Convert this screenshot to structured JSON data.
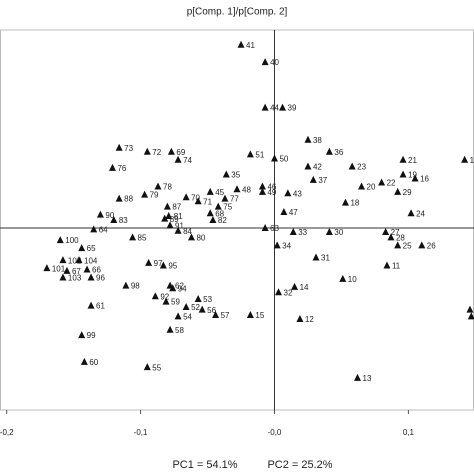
{
  "chart_data": {
    "type": "scatter",
    "title": "p[Comp. 1]/p[Comp. 2]",
    "x": [
      -0.025,
      -0.007,
      -0.007,
      0.006,
      0.025,
      -0.116,
      -0.095,
      -0.077,
      -0.072,
      -0.018,
      0.0,
      0.041,
      -0.121,
      0.025,
      0.058,
      0.096,
      0.142,
      -0.036,
      0.029,
      0.096,
      0.105,
      -0.009,
      -0.087,
      0.065,
      0.08,
      -0.048,
      -0.009,
      -0.028,
      0.01,
      0.092,
      -0.066,
      -0.037,
      -0.116,
      -0.097,
      -0.042,
      0.053,
      -0.08,
      -0.13,
      -0.12,
      -0.079,
      -0.048,
      0.007,
      0.102,
      -0.082,
      -0.046,
      -0.057,
      -0.078,
      -0.007,
      -0.135,
      -0.072,
      0.014,
      0.041,
      0.083,
      -0.106,
      -0.062,
      -0.16,
      0.087,
      0.002,
      0.092,
      0.11,
      -0.144,
      0.031,
      -0.158,
      -0.146,
      -0.094,
      -0.083,
      0.084,
      -0.17,
      -0.155,
      -0.14,
      -0.137,
      -0.158,
      0.051,
      -0.111,
      -0.078,
      -0.076,
      0.015,
      0.003,
      -0.137,
      -0.089,
      -0.081,
      -0.057,
      -0.066,
      -0.054,
      -0.044,
      -0.072,
      -0.018,
      0.019,
      0.146,
      0.147,
      -0.078,
      -0.144,
      -0.142,
      -0.095,
      0.062
    ],
    "y": [
      0.137,
      0.124,
      0.09,
      0.09,
      0.066,
      0.06,
      0.057,
      0.057,
      0.051,
      0.055,
      0.052,
      0.057,
      0.045,
      0.046,
      0.046,
      0.051,
      0.051,
      0.04,
      0.036,
      0.04,
      0.037,
      0.031,
      0.031,
      0.031,
      0.034,
      0.027,
      0.027,
      0.029,
      0.026,
      0.027,
      0.023,
      0.022,
      0.022,
      0.025,
      0.016,
      0.019,
      0.016,
      0.01,
      0.006,
      0.009,
      0.011,
      0.012,
      0.011,
      0.007,
      0.006,
      0.02,
      0.002,
      0.0,
      -0.001,
      -0.002,
      -0.003,
      -0.003,
      -0.003,
      -0.007,
      -0.007,
      -0.009,
      -0.007,
      -0.013,
      -0.013,
      -0.013,
      -0.015,
      -0.022,
      -0.024,
      -0.024,
      -0.026,
      -0.028,
      -0.028,
      -0.03,
      -0.032,
      -0.031,
      -0.037,
      -0.037,
      -0.038,
      -0.043,
      -0.043,
      -0.045,
      -0.044,
      -0.048,
      -0.058,
      -0.051,
      -0.055,
      -0.053,
      -0.059,
      -0.061,
      -0.065,
      -0.066,
      -0.065,
      -0.068,
      -0.061,
      -0.066,
      -0.076,
      -0.08,
      -0.1,
      -0.104,
      -0.112
    ],
    "labels": [
      "41",
      "40",
      "44",
      "39",
      "38",
      "73",
      "72",
      "69",
      "74",
      "51",
      "50",
      "36",
      "76",
      "42",
      "23",
      "21",
      "1",
      "35",
      "37",
      "19",
      "16",
      "46",
      "78",
      "20",
      "22",
      "45",
      "49",
      "48",
      "43",
      "29",
      "70",
      "77",
      "88",
      "79",
      "75",
      "18",
      "87",
      "90",
      "83",
      "81",
      "68",
      "47",
      "24",
      "89",
      "82",
      "71",
      "91",
      "63",
      "64",
      "84",
      "33",
      "30",
      "27",
      "85",
      "80",
      "100",
      "28",
      "34",
      "25",
      "26",
      "65",
      "31",
      "102",
      "104",
      "97",
      "95",
      "11",
      "101",
      "67",
      "66",
      "96",
      "103",
      "10",
      "98",
      "62",
      "94",
      "14",
      "32",
      "61",
      "92",
      "59",
      "53",
      "52",
      "56",
      "57",
      "54",
      "15",
      "12",
      null,
      null,
      "58",
      "99",
      "60",
      "55",
      "13"
    ],
    "color": "#111111",
    "xlim": [
      -0.205,
      0.149
    ],
    "ylim": [
      -0.136,
      0.148
    ],
    "xticks": [
      {
        "value": -0.2,
        "label": "-0,2"
      },
      {
        "value": -0.1,
        "label": "-0,1"
      },
      {
        "value": 0,
        "label": "-0,0"
      },
      {
        "value": 0.1,
        "label": "0,1"
      }
    ],
    "annotations": [
      "PC1 = 54.1%",
      "PC2 = 25.2%"
    ]
  }
}
